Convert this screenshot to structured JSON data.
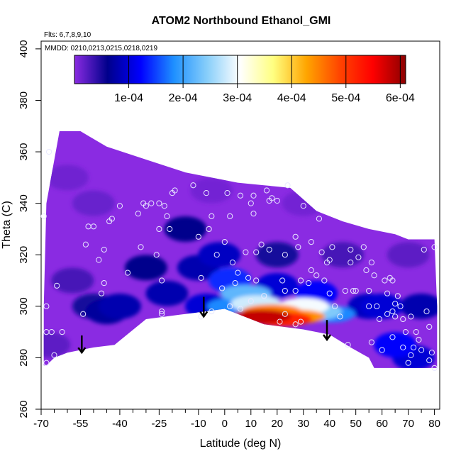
{
  "chart_data": {
    "type": "heatmap",
    "title": "ATOM2 Northbound Ethanol_GMI",
    "subtitle_lines": [
      "Flts: 6,7,8,9,10",
      "MMDD: 0210,0213,0215,0218,0219"
    ],
    "xlabel": "Latitude (deg N)",
    "ylabel": "Theta (C)",
    "xlim": [
      -70,
      82
    ],
    "ylim": [
      260,
      403
    ],
    "x_ticks": [
      -70,
      -55,
      -40,
      -25,
      -10,
      0,
      10,
      20,
      30,
      40,
      50,
      60,
      70,
      80
    ],
    "x_minor_ticks": [
      -65,
      -60,
      -50,
      -45,
      -35,
      -30,
      -20,
      -15,
      -5,
      5,
      15,
      25,
      35,
      45,
      55,
      65,
      75
    ],
    "y_ticks": [
      260,
      280,
      300,
      320,
      340,
      360,
      380,
      400
    ],
    "colorbar": {
      "min": 0,
      "max": 0.00061,
      "ticks": [
        0.0001,
        0.0002,
        0.0003,
        0.0004,
        0.0005,
        0.0006
      ],
      "tick_labels": [
        "1e-04",
        "2e-04",
        "3e-04",
        "4e-04",
        "5e-04",
        "6e-04"
      ],
      "colors": [
        "#8a2be2",
        "#00008b",
        "#0000ff",
        "#1e90ff",
        "#87cefa",
        "#ffffff",
        "#ffff80",
        "#ffa500",
        "#ff4500",
        "#ff0000",
        "#8b0000"
      ]
    },
    "top_boundary": [
      [
        -63,
        368
      ],
      [
        -55,
        368
      ],
      [
        -45,
        362
      ],
      [
        -30,
        357
      ],
      [
        -15,
        352
      ],
      [
        -5,
        350
      ],
      [
        5,
        348
      ],
      [
        15,
        347
      ],
      [
        25,
        346
      ],
      [
        35,
        337
      ],
      [
        45,
        333
      ],
      [
        55,
        330
      ],
      [
        65,
        328
      ],
      [
        70,
        326
      ],
      [
        80,
        326
      ]
    ],
    "bottom_boundary": [
      [
        -68,
        277
      ],
      [
        -65,
        280
      ],
      [
        -60,
        282
      ],
      [
        -50,
        284
      ],
      [
        -42,
        285
      ],
      [
        -30,
        295
      ],
      [
        -15,
        297
      ],
      [
        0,
        299
      ],
      [
        15,
        293
      ],
      [
        30,
        291
      ],
      [
        40,
        289
      ],
      [
        48,
        284
      ],
      [
        55,
        280
      ],
      [
        57,
        276
      ],
      [
        80,
        276
      ]
    ],
    "left_boundary": [
      [
        -69,
        277
      ],
      [
        -69,
        300
      ],
      [
        -68,
        340
      ],
      [
        -63,
        368
      ]
    ],
    "right_boundary": [
      [
        80,
        326
      ],
      [
        81,
        300
      ],
      [
        81,
        276
      ]
    ],
    "field": [
      {
        "lat": -60,
        "theta": 350,
        "value": 1.2e-05
      },
      {
        "lat": -50,
        "theta": 340,
        "value": 1.5e-05
      },
      {
        "lat": -58,
        "theta": 310,
        "value": 3e-05
      },
      {
        "lat": -50,
        "theta": 300,
        "value": 5e-05
      },
      {
        "lat": -45,
        "theta": 298,
        "value": 7e-05
      },
      {
        "lat": -40,
        "theta": 300,
        "value": 8e-05
      },
      {
        "lat": -30,
        "theta": 315,
        "value": 6e-05
      },
      {
        "lat": -22,
        "theta": 305,
        "value": 8e-05
      },
      {
        "lat": -15,
        "theta": 330,
        "value": 6e-05
      },
      {
        "lat": -10,
        "theta": 315,
        "value": 8e-05
      },
      {
        "lat": -7,
        "theta": 300,
        "value": 0.0001
      },
      {
        "lat": -2,
        "theta": 320,
        "value": 9e-05
      },
      {
        "lat": 2,
        "theta": 310,
        "value": 0.00014
      },
      {
        "lat": 3,
        "theta": 300,
        "value": 0.00018
      },
      {
        "lat": 8,
        "theta": 305,
        "value": 0.00022
      },
      {
        "lat": 12,
        "theta": 301,
        "value": 0.00028
      },
      {
        "lat": 18,
        "theta": 298,
        "value": 0.00045
      },
      {
        "lat": 14,
        "theta": 296,
        "value": 0.00058
      },
      {
        "lat": 22,
        "theta": 295,
        "value": 0.00052
      },
      {
        "lat": 27,
        "theta": 296,
        "value": 0.00044
      },
      {
        "lat": 30,
        "theta": 300,
        "value": 0.0003
      },
      {
        "lat": 35,
        "theta": 298,
        "value": 0.00024
      },
      {
        "lat": 40,
        "theta": 297,
        "value": 0.00018
      },
      {
        "lat": 35,
        "theta": 305,
        "value": 0.00012
      },
      {
        "lat": 20,
        "theta": 308,
        "value": 0.0001
      },
      {
        "lat": 20,
        "theta": 320,
        "value": 5e-05
      },
      {
        "lat": 45,
        "theta": 320,
        "value": 3e-05
      },
      {
        "lat": 55,
        "theta": 300,
        "value": 9e-05
      },
      {
        "lat": 60,
        "theta": 300,
        "value": 0.0001
      },
      {
        "lat": 65,
        "theta": 285,
        "value": 0.00012
      },
      {
        "lat": 72,
        "theta": 280,
        "value": 0.0001
      },
      {
        "lat": 75,
        "theta": 300,
        "value": 8e-05
      },
      {
        "lat": 70,
        "theta": 320,
        "value": 2e-05
      },
      {
        "lat": -5,
        "theta": 345,
        "value": 1e-05
      },
      {
        "lat": 30,
        "theta": 340,
        "value": 1e-05
      },
      {
        "lat": -67,
        "theta": 285,
        "value": 2e-05
      }
    ],
    "points": [
      [
        -69,
        335
      ],
      [
        -67,
        360
      ],
      [
        -68,
        300
      ],
      [
        -68,
        290
      ],
      [
        -68,
        278
      ],
      [
        -66,
        290
      ],
      [
        -65,
        281
      ],
      [
        -64,
        308
      ],
      [
        -62,
        290
      ],
      [
        -54,
        297
      ],
      [
        -53,
        324
      ],
      [
        -52,
        331
      ],
      [
        -50,
        331
      ],
      [
        -48,
        318
      ],
      [
        -46,
        309
      ],
      [
        -46,
        322
      ],
      [
        -44,
        333
      ],
      [
        -43,
        334
      ],
      [
        -47,
        305
      ],
      [
        -40,
        339
      ],
      [
        -37,
        313
      ],
      [
        -33,
        336
      ],
      [
        -32,
        323
      ],
      [
        -31,
        340
      ],
      [
        -30,
        339
      ],
      [
        -28,
        340
      ],
      [
        -26,
        320
      ],
      [
        -25,
        330
      ],
      [
        -25,
        340
      ],
      [
        -24,
        297
      ],
      [
        -24,
        298
      ],
      [
        -24,
        310
      ],
      [
        -23,
        339
      ],
      [
        -22,
        335
      ],
      [
        -21,
        330
      ],
      [
        -20,
        344
      ],
      [
        -19,
        345
      ],
      [
        -12,
        347
      ],
      [
        -10,
        327
      ],
      [
        -9,
        311
      ],
      [
        -9,
        296
      ],
      [
        -7,
        344
      ],
      [
        -6,
        330
      ],
      [
        -5,
        335
      ],
      [
        -5,
        298
      ],
      [
        -3,
        320
      ],
      [
        0,
        325
      ],
      [
        1,
        344
      ],
      [
        -1,
        307
      ],
      [
        2,
        300
      ],
      [
        2,
        335
      ],
      [
        3,
        317
      ],
      [
        4,
        309
      ],
      [
        5,
        313
      ],
      [
        6,
        299
      ],
      [
        6,
        343
      ],
      [
        8,
        321
      ],
      [
        9,
        311
      ],
      [
        10,
        302
      ],
      [
        10,
        340
      ],
      [
        11,
        336
      ],
      [
        11,
        343
      ],
      [
        12,
        321
      ],
      [
        12,
        310
      ],
      [
        14,
        324
      ],
      [
        15,
        304
      ],
      [
        16,
        345
      ],
      [
        17,
        322
      ],
      [
        17,
        341
      ],
      [
        18,
        342
      ],
      [
        20,
        341
      ],
      [
        21,
        294
      ],
      [
        22,
        310
      ],
      [
        23,
        320
      ],
      [
        23,
        306
      ],
      [
        23,
        297
      ],
      [
        24,
        347
      ],
      [
        27,
        293
      ],
      [
        27,
        306
      ],
      [
        27,
        327
      ],
      [
        28,
        323
      ],
      [
        29,
        310
      ],
      [
        29,
        294
      ],
      [
        30,
        339
      ],
      [
        32,
        309
      ],
      [
        33,
        325
      ],
      [
        33,
        314
      ],
      [
        35,
        312
      ],
      [
        36,
        334
      ],
      [
        37,
        321
      ],
      [
        38,
        310
      ],
      [
        39,
        317
      ],
      [
        40,
        318
      ],
      [
        40,
        305
      ],
      [
        41,
        323
      ],
      [
        42,
        300
      ],
      [
        44,
        296
      ],
      [
        46,
        306
      ],
      [
        47,
        285
      ],
      [
        48,
        317
      ],
      [
        48,
        322
      ],
      [
        49,
        306
      ],
      [
        50,
        306
      ],
      [
        51,
        319
      ],
      [
        53,
        323
      ],
      [
        54,
        314
      ],
      [
        55,
        306
      ],
      [
        55,
        300
      ],
      [
        56,
        317
      ],
      [
        56,
        286
      ],
      [
        57,
        312
      ],
      [
        58,
        300
      ],
      [
        59,
        295
      ],
      [
        60,
        283
      ],
      [
        61,
        310
      ],
      [
        62,
        297
      ],
      [
        62,
        305
      ],
      [
        63,
        311
      ],
      [
        64,
        310
      ],
      [
        64,
        298
      ],
      [
        64,
        288
      ],
      [
        65,
        296
      ],
      [
        65,
        301
      ],
      [
        66,
        304
      ],
      [
        67,
        300
      ],
      [
        68,
        295
      ],
      [
        68,
        284
      ],
      [
        69,
        290
      ],
      [
        70,
        278
      ],
      [
        71,
        296
      ],
      [
        71,
        281
      ],
      [
        72,
        284
      ],
      [
        73,
        290
      ],
      [
        74,
        287
      ],
      [
        75,
        283
      ],
      [
        76,
        322
      ],
      [
        77,
        298
      ],
      [
        78,
        292
      ],
      [
        78,
        279
      ],
      [
        79,
        282
      ],
      [
        80,
        323
      ],
      [
        80,
        276
      ]
    ],
    "arrows": [
      {
        "lat": -54.5,
        "theta_top": 287,
        "theta_bottom": 282
      },
      {
        "lat": -8,
        "theta_top": 302,
        "theta_bottom": 296
      },
      {
        "lat": 39,
        "theta_top": 293,
        "theta_bottom": 287
      }
    ]
  }
}
